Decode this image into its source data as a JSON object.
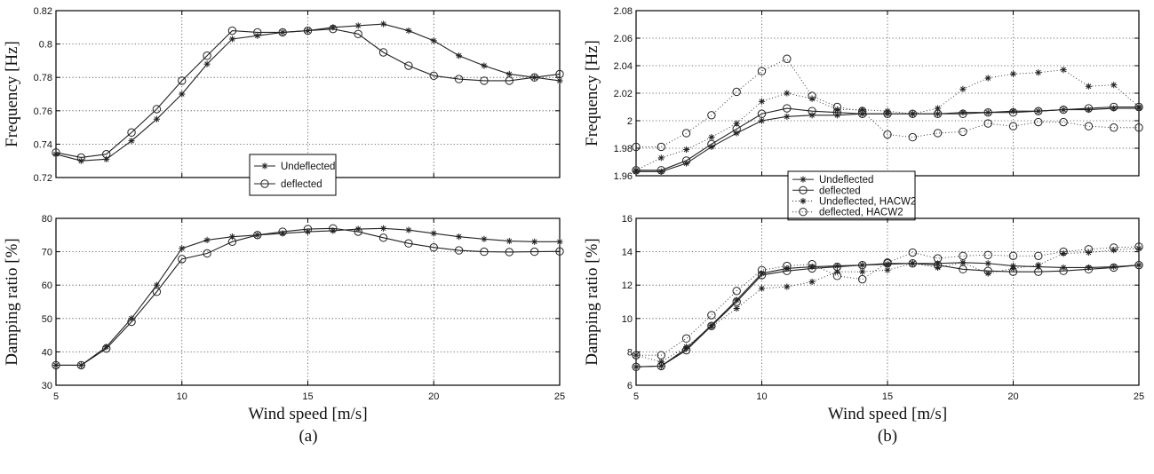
{
  "captions": [
    "(a)",
    "(b)"
  ],
  "chart_data": [
    {
      "type": "line",
      "ylabel": "Frequency [Hz]",
      "xlabel": "",
      "xlim": [
        5,
        25
      ],
      "ylim": [
        0.72,
        0.82
      ],
      "xticks": [
        5,
        10,
        15,
        20,
        25
      ],
      "show_xtick_labels": false,
      "yticks": [
        "0.72",
        "0.74",
        "0.76",
        "0.78",
        "0.8",
        "0.82"
      ],
      "grid": true,
      "legend": "bottom-center",
      "x": [
        5,
        6,
        7,
        8,
        9,
        10,
        11,
        12,
        13,
        14,
        15,
        16,
        17,
        18,
        19,
        20,
        21,
        22,
        23,
        24,
        25
      ],
      "series": [
        {
          "name": "Undeflected",
          "marker": "star",
          "line": "solid",
          "values": [
            0.734,
            0.73,
            0.731,
            0.742,
            0.755,
            0.77,
            0.788,
            0.803,
            0.805,
            0.807,
            0.808,
            0.81,
            0.811,
            0.812,
            0.808,
            0.802,
            0.793,
            0.787,
            0.782,
            0.78,
            0.778
          ]
        },
        {
          "name": "deflected",
          "marker": "circle",
          "line": "solid",
          "values": [
            0.735,
            0.732,
            0.734,
            0.747,
            0.761,
            0.778,
            0.793,
            0.808,
            0.807,
            0.807,
            0.808,
            0.809,
            0.806,
            0.795,
            0.787,
            0.781,
            0.779,
            0.778,
            0.778,
            0.78,
            0.782
          ]
        }
      ]
    },
    {
      "type": "line",
      "ylabel": "Damping ratio [%]",
      "xlabel": "Wind speed [m/s]",
      "xlim": [
        5,
        25
      ],
      "ylim": [
        30,
        80
      ],
      "xticks": [
        5,
        10,
        15,
        20,
        25
      ],
      "show_xtick_labels": true,
      "yticks": [
        "30",
        "40",
        "50",
        "60",
        "70",
        "80"
      ],
      "grid": true,
      "x": [
        5,
        6,
        7,
        8,
        9,
        10,
        11,
        12,
        13,
        14,
        15,
        16,
        17,
        18,
        19,
        20,
        21,
        22,
        23,
        24,
        25
      ],
      "series": [
        {
          "marker": "star",
          "line": "solid",
          "values": [
            36,
            36,
            41.5,
            50,
            60,
            71,
            73.5,
            74.5,
            75,
            75.5,
            76,
            76.3,
            76.8,
            77,
            76.5,
            75.5,
            74.5,
            73.8,
            73.2,
            73,
            73
          ]
        },
        {
          "marker": "circle",
          "line": "solid",
          "values": [
            36,
            36,
            41,
            49,
            58,
            67.8,
            69.5,
            73,
            75,
            76,
            76.8,
            77,
            76,
            74.2,
            72.5,
            71.3,
            70.4,
            70,
            69.9,
            70,
            70.1
          ]
        }
      ]
    },
    {
      "type": "line",
      "ylabel": "Frequency [Hz]",
      "xlabel": "",
      "xlim": [
        5,
        25
      ],
      "ylim": [
        1.96,
        2.08
      ],
      "xticks": [
        5,
        10,
        15,
        20,
        25
      ],
      "show_xtick_labels": false,
      "yticks": [
        "1.96",
        "1.98",
        "2",
        "2.02",
        "2.04",
        "2.06",
        "2.08"
      ],
      "grid": true,
      "legend": "bottom-center",
      "x": [
        5,
        6,
        7,
        8,
        9,
        10,
        11,
        12,
        13,
        14,
        15,
        16,
        17,
        18,
        19,
        20,
        21,
        22,
        23,
        24,
        25
      ],
      "series": [
        {
          "name": "Undeflected",
          "marker": "star",
          "line": "solid",
          "values": [
            1.963,
            1.963,
            1.969,
            1.981,
            1.991,
            2.0,
            2.003,
            2.004,
            2.004,
            2.005,
            2.005,
            2.005,
            2.005,
            2.006,
            2.006,
            2.007,
            2.007,
            2.008,
            2.008,
            2.009,
            2.009
          ]
        },
        {
          "name": "deflected",
          "marker": "circle",
          "line": "solid",
          "values": [
            1.964,
            1.964,
            1.971,
            1.983,
            1.994,
            2.005,
            2.009,
            2.007,
            2.006,
            2.005,
            2.005,
            2.005,
            2.005,
            2.005,
            2.006,
            2.006,
            2.007,
            2.008,
            2.009,
            2.01,
            2.01
          ]
        },
        {
          "name": "Undeflected, HACW2",
          "marker": "star",
          "line": "dotted",
          "values": [
            1.964,
            1.973,
            1.979,
            1.988,
            1.998,
            2.014,
            2.02,
            2.016,
            2.008,
            2.008,
            2.007,
            2.005,
            2.009,
            2.023,
            2.031,
            2.034,
            2.035,
            2.037,
            2.025,
            2.026,
            2.01
          ]
        },
        {
          "name": "deflected, HACW2",
          "marker": "circle",
          "line": "dotted",
          "values": [
            1.981,
            1.981,
            1.991,
            2.004,
            2.021,
            2.036,
            2.045,
            2.018,
            2.01,
            2.007,
            1.99,
            1.988,
            1.991,
            1.992,
            1.998,
            1.996,
            1.999,
            1.999,
            1.996,
            1.995,
            1.995
          ]
        }
      ]
    },
    {
      "type": "line",
      "ylabel": "Damping ratio [%]",
      "xlabel": "Wind speed [m/s]",
      "xlim": [
        5,
        25
      ],
      "ylim": [
        6,
        16
      ],
      "xticks": [
        5,
        10,
        15,
        20,
        25
      ],
      "show_xtick_labels": true,
      "yticks": [
        "6",
        "8",
        "10",
        "12",
        "14",
        "16"
      ],
      "grid": true,
      "x": [
        5,
        6,
        7,
        8,
        9,
        10,
        11,
        12,
        13,
        14,
        15,
        16,
        17,
        18,
        19,
        20,
        21,
        22,
        23,
        24,
        25
      ],
      "series": [
        {
          "marker": "star",
          "line": "solid",
          "values": [
            7.1,
            7.15,
            8.2,
            9.6,
            11.1,
            12.7,
            13.0,
            13.1,
            13.15,
            13.2,
            13.25,
            13.3,
            13.3,
            13.35,
            13.3,
            13.15,
            13.1,
            13.05,
            13.05,
            13.1,
            13.2
          ]
        },
        {
          "marker": "circle",
          "line": "solid",
          "values": [
            7.1,
            7.15,
            8.1,
            9.55,
            11.0,
            12.6,
            12.85,
            13.0,
            13.1,
            13.2,
            13.3,
            13.3,
            13.2,
            12.95,
            12.85,
            12.8,
            12.8,
            12.85,
            12.95,
            13.05,
            13.2
          ]
        },
        {
          "marker": "star",
          "line": "dotted",
          "values": [
            7.8,
            7.4,
            8.3,
            9.5,
            10.6,
            11.8,
            11.9,
            12.2,
            12.8,
            12.8,
            12.9,
            13.3,
            13.05,
            13.35,
            12.7,
            13.0,
            13.2,
            13.9,
            13.95,
            14.1,
            14.2
          ]
        },
        {
          "marker": "circle",
          "line": "dotted",
          "values": [
            7.8,
            7.8,
            8.8,
            10.2,
            11.65,
            12.9,
            13.15,
            13.25,
            12.55,
            12.35,
            13.35,
            13.95,
            13.6,
            13.75,
            13.8,
            13.75,
            13.75,
            14.0,
            14.15,
            14.25,
            14.3
          ]
        }
      ]
    }
  ]
}
